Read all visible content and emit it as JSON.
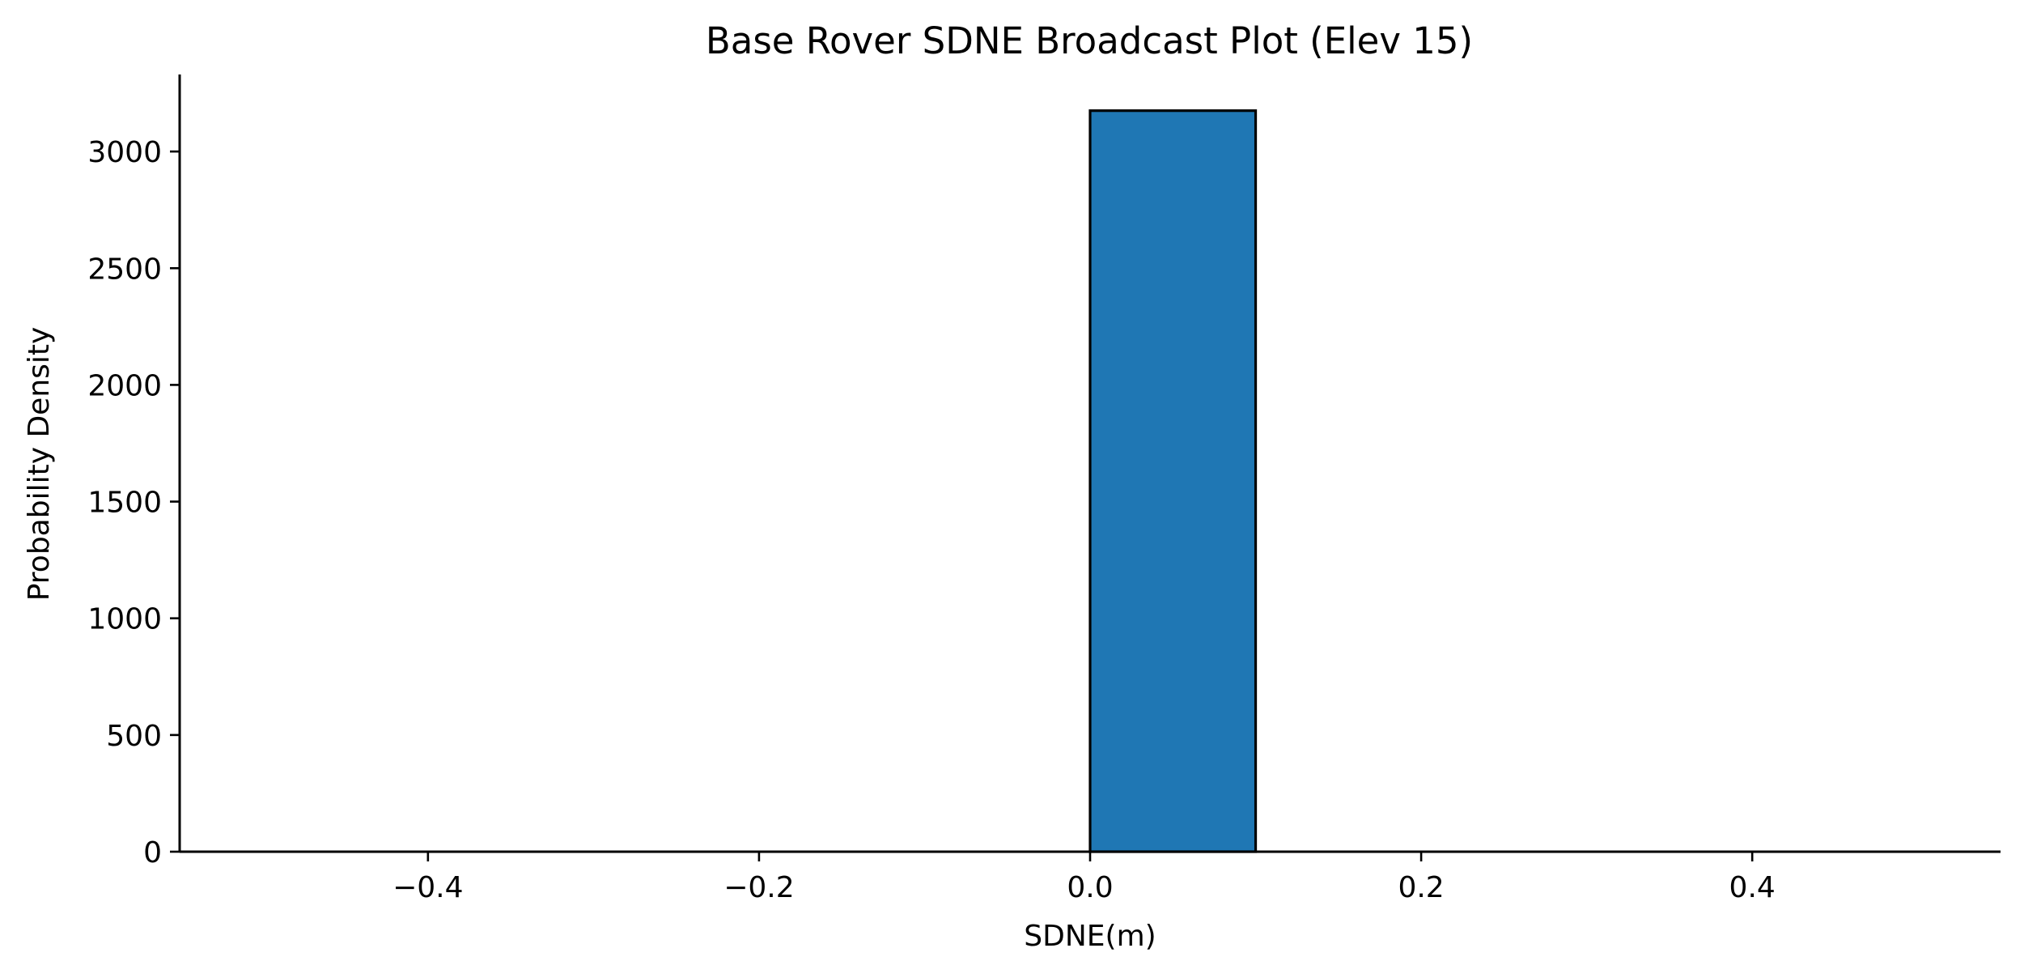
{
  "chart_data": {
    "type": "bar",
    "chart_kind": "histogram",
    "title": "Base Rover SDNE Broadcast Plot (Elev 15)",
    "xlabel": "SDNE(m)",
    "ylabel": "Probability Density",
    "xlim": [
      -0.55,
      0.55
    ],
    "ylim": [
      0,
      3330
    ],
    "x_ticks": [
      -0.4,
      -0.2,
      0.0,
      0.2,
      0.4
    ],
    "x_tick_labels": [
      "−0.4",
      "−0.2",
      "0.0",
      "0.2",
      "0.4"
    ],
    "y_ticks": [
      0,
      500,
      1000,
      1500,
      2000,
      2500,
      3000
    ],
    "y_tick_labels": [
      "0",
      "500",
      "1000",
      "1500",
      "2000",
      "2500",
      "3000"
    ],
    "bin_edges": [
      -0.5,
      -0.4,
      -0.3,
      -0.2,
      -0.1,
      0.0,
      0.1,
      0.2,
      0.3,
      0.4,
      0.5
    ],
    "values": [
      0,
      0,
      0,
      0,
      0,
      3175,
      0,
      0,
      0,
      0
    ],
    "grid": false,
    "legend": "none",
    "bar_color": "#1f77b4",
    "edge_color": "#000000",
    "spines": [
      "left",
      "bottom"
    ]
  }
}
